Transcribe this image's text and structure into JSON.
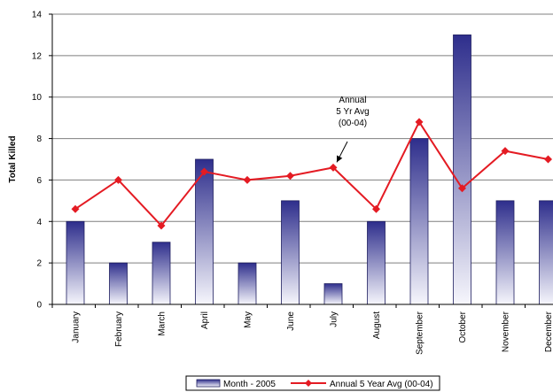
{
  "chart_data": {
    "type": "bar",
    "ylabel": "Total Killed",
    "ylim": [
      0,
      14
    ],
    "yticks": [
      0,
      2,
      4,
      6,
      8,
      10,
      12,
      14
    ],
    "grid": true,
    "categories": [
      "January",
      "February",
      "March",
      "April",
      "May",
      "June",
      "July",
      "August",
      "September",
      "October",
      "November",
      "December"
    ],
    "series": [
      {
        "name": "Month - 2005",
        "type": "bar",
        "values": [
          4,
          2,
          3,
          7,
          2,
          5,
          1,
          4,
          8,
          13,
          5,
          5
        ],
        "color": "#3a3a9a"
      },
      {
        "name": "Annual 5 Year Avg (00-04)",
        "type": "line",
        "values": [
          4.6,
          6.0,
          3.8,
          6.4,
          6.0,
          6.2,
          6.6,
          4.6,
          8.8,
          5.6,
          7.4,
          7.0
        ],
        "color": "#e41b23"
      }
    ],
    "annotation": {
      "lines": [
        "Annual",
        "5 Yr Avg",
        "(00-04)"
      ],
      "category": "July",
      "value": 6.6
    },
    "legend_position": "bottom"
  }
}
